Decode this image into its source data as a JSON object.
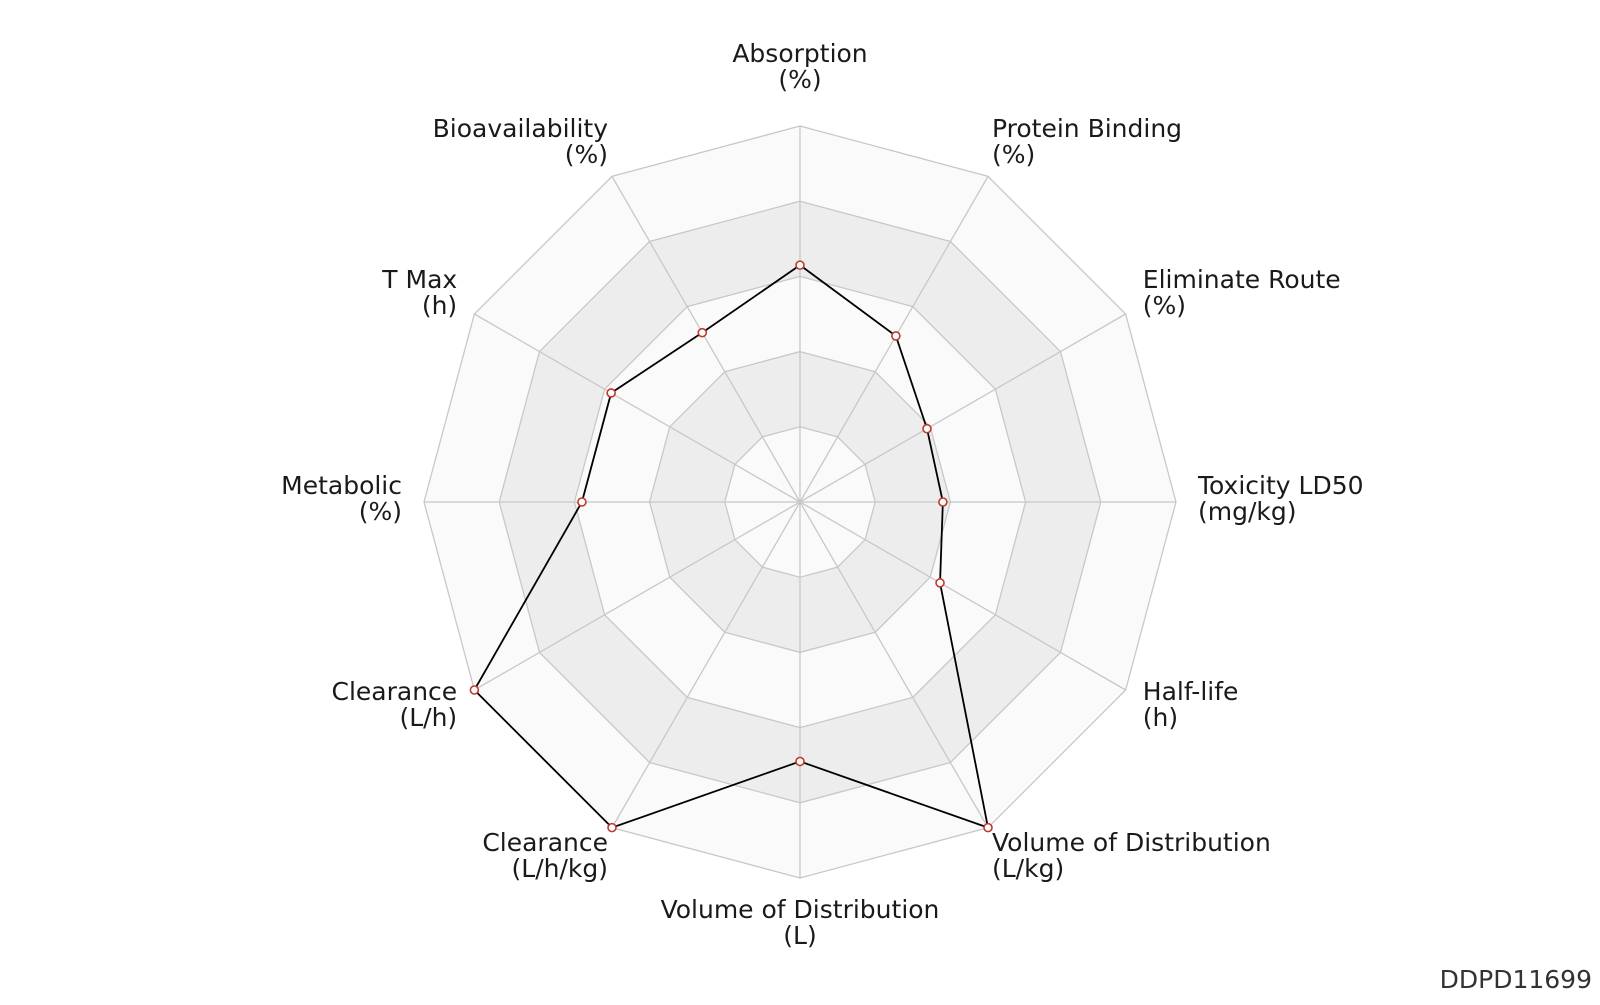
{
  "chart_data": {
    "type": "radar",
    "axes": [
      {
        "label": "Absorption",
        "unit": "(%)",
        "value": 0.63
      },
      {
        "label": "Protein Binding",
        "unit": "(%)",
        "value": 0.51
      },
      {
        "label": "Eliminate Route",
        "unit": "(%)",
        "value": 0.39
      },
      {
        "label": "Toxicity LD50",
        "unit": "(mg/kg)",
        "value": 0.38
      },
      {
        "label": "Half-life",
        "unit": "(h)",
        "value": 0.43
      },
      {
        "label": "Volume of Distribution",
        "unit": "(L/kg)",
        "value": 1.0
      },
      {
        "label": "Volume of Distribution",
        "unit": "(L)",
        "value": 0.69
      },
      {
        "label": "Clearance",
        "unit": "(L/h/kg)",
        "value": 1.0
      },
      {
        "label": "Clearance",
        "unit": "(L/h)",
        "value": 1.0
      },
      {
        "label": "Metabolic",
        "unit": "(%)",
        "value": 0.58
      },
      {
        "label": "T Max",
        "unit": "(h)",
        "value": 0.58
      },
      {
        "label": "Bioavailability",
        "unit": "(%)",
        "value": 0.52
      }
    ],
    "rlim": [
      0,
      1
    ],
    "rings": 5,
    "colors": {
      "line": "#000000",
      "marker_edge": "#c0392b",
      "marker_fill": "#ffffff",
      "grid": "#c8c8c8",
      "band_dark": "#ededed",
      "band_light": "#fafafa"
    }
  },
  "id_code": "DDPD11699"
}
